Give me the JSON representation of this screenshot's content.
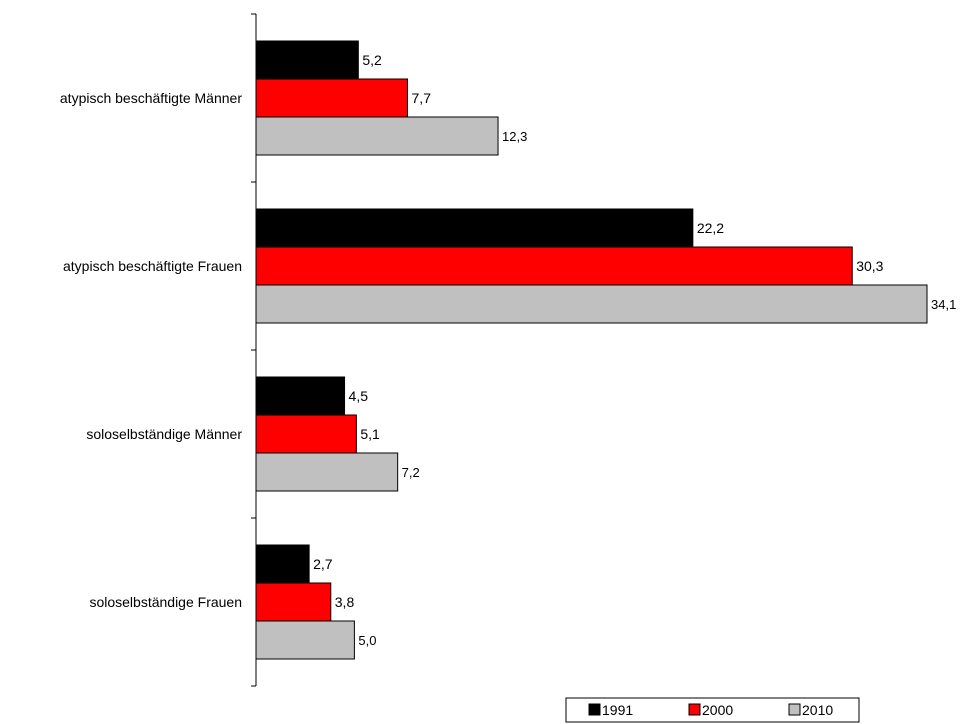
{
  "chart_data": {
    "type": "bar",
    "orientation": "horizontal",
    "categories": [
      "atypisch beschäftigte Männer",
      "atypisch beschäftigte Frauen",
      "soloselbständige Männer",
      "soloselbständige Frauen"
    ],
    "series": [
      {
        "name": "1991",
        "color": "#000000",
        "values": [
          5.2,
          22.2,
          4.5,
          2.7
        ],
        "labels": [
          "5,2",
          "22,2",
          "4,5",
          "2,7"
        ]
      },
      {
        "name": "2000",
        "color": "#ff0000",
        "values": [
          7.7,
          30.3,
          5.1,
          3.8
        ],
        "labels": [
          "7,7",
          "30,3",
          "5,1",
          "3,8"
        ]
      },
      {
        "name": "2010",
        "color": "#c0c0c0",
        "values": [
          12.3,
          34.1,
          7.2,
          5.0
        ],
        "labels": [
          "12,3",
          "34,1",
          "7,2",
          "5,0"
        ]
      }
    ],
    "xlim": [
      0,
      34.1
    ],
    "legend_position": "bottom-right",
    "grid": false
  }
}
